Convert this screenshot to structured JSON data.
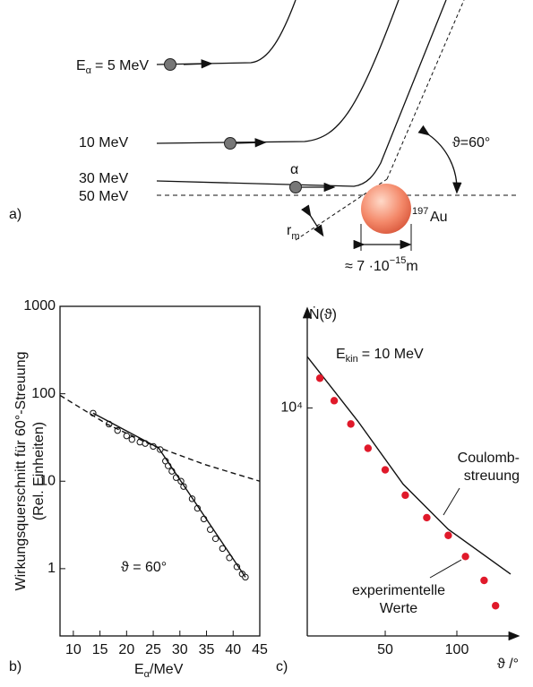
{
  "diagram": {
    "e5": {
      "main": "E",
      "sub": "α",
      "rest": "= 5 MeV"
    },
    "e10": "10 MeV",
    "e30": "30 MeV",
    "e50": "50 MeV",
    "alpha": "α",
    "angle": "ϑ=60°",
    "au_mass": "197",
    "au": "Au",
    "rm": {
      "main": "r",
      "sub": "m"
    },
    "size": {
      "main": "≈ 7 ·10",
      "sup": "−15",
      "rest": "m"
    },
    "panel": "a)"
  },
  "chart_data": [
    {
      "type": "scatter",
      "panel": "b)",
      "ylabel": [
        "Wirkungsquerschnitt für 60°-Streuung",
        "(Rel. Einheiten)"
      ],
      "xlabel": {
        "main": "E",
        "sub": "α",
        "rest": "/MeV"
      },
      "annotation": "ϑ = 60°",
      "xlim": [
        7.5,
        45
      ],
      "xticks": [
        10,
        15,
        20,
        25,
        30,
        35,
        40,
        45
      ],
      "ylim": [
        0.17,
        1000
      ],
      "yticks": [
        1,
        10,
        100,
        1000
      ],
      "log_y": true,
      "series": [
        {
          "style": "open-circles",
          "color": "#111",
          "x": [
            13.7,
            16.7,
            18.3,
            20,
            21,
            22.5,
            23.5,
            25,
            26.3,
            27.3,
            27.8,
            28.5,
            29.3,
            30.2,
            30.7,
            32.3,
            33.3,
            34.5,
            35.7,
            36.7,
            38,
            39.3,
            40.7,
            41.7,
            42.3
          ],
          "values": [
            60,
            45,
            38,
            33,
            30,
            28,
            27,
            25,
            23,
            17,
            15,
            13,
            11,
            10,
            8.7,
            6.3,
            4.9,
            3.7,
            2.8,
            2.2,
            1.7,
            1.33,
            1.05,
            0.87,
            0.8
          ]
        },
        {
          "style": "solid",
          "color": "#111",
          "x": [
            13.7,
            26,
            42.3
          ],
          "values": [
            60,
            24,
            0.8
          ]
        },
        {
          "style": "dashed",
          "color": "#111",
          "x": [
            7.5,
            16.3,
            24.7,
            34.7,
            45
          ],
          "values": [
            96,
            45,
            26,
            15.5,
            10
          ]
        }
      ]
    },
    {
      "type": "scatter",
      "panel": "c)",
      "ylabel": "Ṅ(ϑ)",
      "xlabel": "ϑ /°",
      "annotation": {
        "main": "E",
        "sub": "kin",
        "rest": "= 10 MeV"
      },
      "curve_label": [
        "Coulomb-",
        "streuung"
      ],
      "points_label": [
        "experimentelle",
        "Werte"
      ],
      "xlim": [
        -4.4,
        137.5
      ],
      "xticks": [
        50,
        100
      ],
      "ylim": [
        1600,
        18500
      ],
      "yticks": [
        {
          "value": 10000,
          "label": "10⁴"
        }
      ],
      "log_y": true,
      "series": [
        {
          "style": "solid",
          "color": "#111",
          "x": [
            -4.4,
            31,
            62.5,
            94,
            137.5
          ],
          "values": [
            15100,
            8980,
            5420,
            3770,
            2630
          ]
        },
        {
          "style": "dots",
          "color": "#e0192a",
          "x": [
            4.4,
            14.4,
            26,
            38,
            50,
            64,
            79,
            94,
            106,
            119,
            127
          ],
          "values": [
            12700,
            10600,
            8790,
            7230,
            6080,
            4960,
            4140,
            3590,
            3030,
            2500,
            2040
          ]
        }
      ]
    }
  ]
}
